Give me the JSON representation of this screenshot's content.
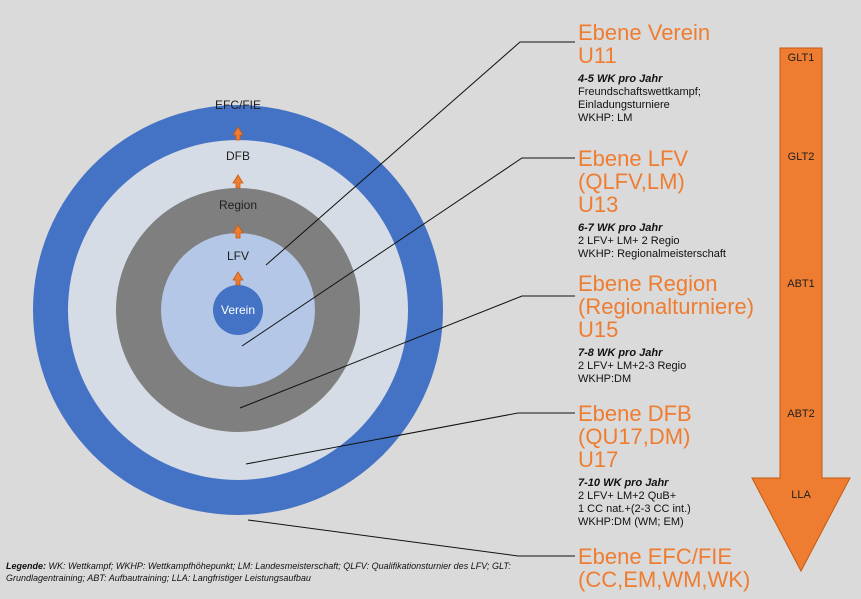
{
  "rings": {
    "efc": "EFC/FIE",
    "dfb": "DFB",
    "region": "Region",
    "lfv": "LFV",
    "verein": "Verein"
  },
  "levels": [
    {
      "title": "Ebene Verein\nU11",
      "wk": "4-5 WK pro Jahr",
      "detail": "Freundschaftswettkampf;\nEinladungsturniere\nWKHP: LM"
    },
    {
      "title": "Ebene LFV\n(QLFV,LM)\nU13",
      "wk": "6-7 WK pro Jahr",
      "detail": "2 LFV+ LM+ 2 Regio\nWKHP: Regionalmeisterschaft"
    },
    {
      "title": "Ebene Region\n(Regionalturniere)\nU15",
      "wk": "7-8 WK pro Jahr",
      "detail": "2 LFV+ LM+2-3 Regio\nWKHP:DM"
    },
    {
      "title": "Ebene DFB\n(QU17,DM)\nU17",
      "wk": "7-10 WK pro Jahr",
      "detail": "2 LFV+ LM+2 QuB+\n1 CC nat.+(2-3 CC int.)\nWKHP:DM (WM; EM)"
    },
    {
      "title": "Ebene EFC/FIE\n(CC,EM,WM,WK)",
      "wk": "",
      "detail": ""
    }
  ],
  "phases": [
    "GLT1",
    "GLT2",
    "ABT1",
    "ABT2",
    "LLA"
  ],
  "legend": {
    "bold": "Legende:",
    "text": " WK: Wettkampf; WKHP: Wettkampfhöhepunkt; LM: Landesmeisterschaft; QLFV: Qualifikationsturnier des LFV; GLT: Grundlagentraining; ABT: Aufbautraining; LLA: Langfristiger Leistungsaufbau"
  },
  "colors": {
    "blue_dark": "#4472c4",
    "blue_light": "#b4c7e7",
    "grey_dark": "#7f7f7f",
    "grey_light": "#d6dce5",
    "orange": "#ef7d31"
  }
}
